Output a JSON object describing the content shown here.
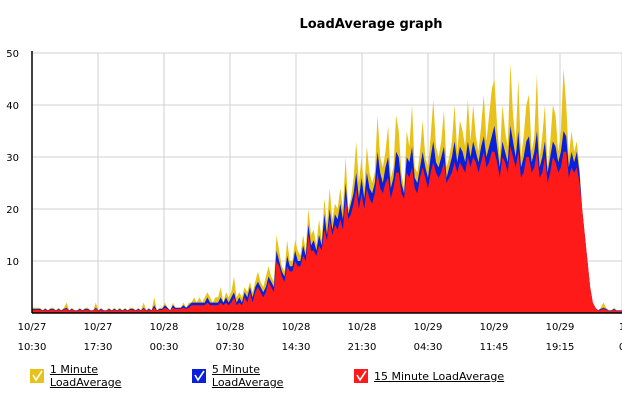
{
  "chart_data": {
    "type": "area",
    "title": "LoadAverage graph",
    "ylim": [
      0,
      50
    ],
    "yticks": [
      10,
      20,
      30,
      40,
      50
    ],
    "xtick_labels": [
      [
        "10/27",
        "10:30"
      ],
      [
        "10/27",
        "17:30"
      ],
      [
        "10/28",
        "00:30"
      ],
      [
        "10/28",
        "07:30"
      ],
      [
        "10/28",
        "14:30"
      ],
      [
        "10/28",
        "21:30"
      ],
      [
        "10/29",
        "04:30"
      ],
      [
        "10/29",
        "11:45"
      ],
      [
        "10/29",
        "19:15"
      ],
      [
        "1",
        "0"
      ]
    ],
    "grid": true,
    "legend_placement": "bottom",
    "series": [
      {
        "name": "1 Minute LoadAverage",
        "color": "#e8c21a",
        "values": [
          1,
          1,
          1,
          1,
          0.5,
          1,
          0.5,
          1,
          1,
          0.5,
          1,
          0.5,
          1,
          2,
          0.5,
          1,
          0.5,
          0.5,
          1,
          0.5,
          1,
          1,
          0.5,
          0.5,
          2,
          0.5,
          1,
          0.5,
          0.5,
          1,
          0.5,
          1,
          0.5,
          1,
          0.5,
          1,
          0.5,
          1,
          1,
          0.5,
          1,
          0.5,
          2,
          0.5,
          1,
          0.5,
          3,
          0.5,
          1,
          1,
          2,
          1,
          0.5,
          2,
          1,
          1,
          1,
          2,
          1,
          2,
          2,
          3,
          2,
          3,
          2,
          3,
          4,
          3,
          2,
          3,
          3,
          5,
          2,
          4,
          3,
          4,
          7,
          3,
          4,
          3,
          5,
          4,
          6,
          4,
          6,
          8,
          6,
          5,
          7,
          9,
          7,
          6,
          15,
          12,
          9,
          8,
          14,
          10,
          10,
          14,
          12,
          11,
          15,
          12,
          20,
          15,
          16,
          13,
          18,
          14,
          22,
          17,
          24,
          18,
          21,
          20,
          24,
          20,
          30,
          20,
          22,
          26,
          33,
          25,
          30,
          24,
          32,
          27,
          25,
          27,
          38,
          30,
          28,
          31,
          36,
          26,
          28,
          38,
          35,
          27,
          24,
          35,
          32,
          40,
          28,
          27,
          31,
          37,
          30,
          28,
          34,
          41,
          32,
          30,
          33,
          39,
          28,
          30,
          33,
          40,
          31,
          37,
          35,
          32,
          41,
          33,
          40,
          34,
          31,
          36,
          42,
          33,
          38,
          43,
          45,
          36,
          30,
          40,
          35,
          32,
          48,
          38,
          33,
          45,
          30,
          34,
          40,
          42,
          31,
          34,
          46,
          30,
          34,
          40,
          28,
          33,
          40,
          38,
          31,
          35,
          47,
          40,
          30,
          35,
          31,
          33,
          28,
          20,
          15,
          10,
          5,
          2,
          1,
          0.5,
          1,
          2,
          1,
          0.5,
          0.5,
          1,
          0.5,
          0.5,
          0.5
        ]
      },
      {
        "name": "5 Minute LoadAverage",
        "color": "#0a1fd9",
        "values": [
          0.8,
          0.8,
          0.8,
          0.8,
          0.5,
          0.8,
          0.5,
          0.8,
          0.8,
          0.5,
          0.8,
          0.5,
          0.8,
          1,
          0.5,
          0.8,
          0.5,
          0.5,
          0.8,
          0.5,
          0.8,
          0.8,
          0.5,
          0.5,
          1,
          0.5,
          0.8,
          0.5,
          0.5,
          0.8,
          0.5,
          0.8,
          0.5,
          0.8,
          0.5,
          0.8,
          0.5,
          0.8,
          0.8,
          0.5,
          0.8,
          0.5,
          1,
          0.5,
          0.8,
          0.5,
          1.5,
          0.5,
          0.8,
          0.8,
          1.5,
          1,
          0.5,
          1.5,
          1,
          1,
          1,
          1.5,
          1,
          1.5,
          2,
          2,
          2,
          2,
          2,
          2,
          3,
          2,
          2,
          2,
          2,
          3,
          2,
          3,
          2,
          3,
          4,
          2,
          3,
          2,
          4,
          3,
          5,
          3,
          5,
          6,
          5,
          4,
          5,
          7,
          6,
          5,
          12,
          10,
          8,
          7,
          11,
          9,
          9,
          12,
          10,
          10,
          13,
          11,
          17,
          13,
          14,
          12,
          15,
          13,
          19,
          15,
          20,
          16,
          19,
          18,
          21,
          18,
          25,
          19,
          21,
          23,
          27,
          22,
          26,
          22,
          27,
          24,
          23,
          25,
          31,
          27,
          25,
          28,
          30,
          24,
          26,
          31,
          30,
          25,
          23,
          30,
          29,
          32,
          26,
          25,
          28,
          31,
          28,
          26,
          30,
          33,
          29,
          28,
          30,
          32,
          26,
          28,
          30,
          33,
          29,
          32,
          31,
          29,
          33,
          30,
          33,
          31,
          29,
          32,
          34,
          30,
          32,
          34,
          36,
          32,
          28,
          33,
          31,
          29,
          36,
          33,
          30,
          35,
          28,
          30,
          33,
          34,
          29,
          31,
          35,
          28,
          30,
          33,
          27,
          30,
          33,
          32,
          29,
          31,
          35,
          34,
          28,
          31,
          29,
          31,
          27,
          20,
          15,
          10,
          5,
          2,
          1,
          0.5,
          0.8,
          1,
          0.8,
          0.5,
          0.5,
          0.8,
          0.5,
          0.5,
          0.5
        ]
      },
      {
        "name": "15 Minute LoadAverage",
        "color": "#ff1a1a",
        "values": [
          0.6,
          0.6,
          0.6,
          0.6,
          0.4,
          0.6,
          0.4,
          0.6,
          0.6,
          0.4,
          0.6,
          0.4,
          0.6,
          0.8,
          0.4,
          0.6,
          0.4,
          0.4,
          0.6,
          0.4,
          0.6,
          0.6,
          0.4,
          0.4,
          0.8,
          0.4,
          0.6,
          0.4,
          0.4,
          0.6,
          0.4,
          0.6,
          0.4,
          0.6,
          0.4,
          0.6,
          0.4,
          0.6,
          0.6,
          0.4,
          0.6,
          0.4,
          0.8,
          0.4,
          0.6,
          0.4,
          1,
          0.4,
          0.6,
          0.6,
          1,
          0.8,
          0.4,
          1,
          0.8,
          0.8,
          0.8,
          1,
          0.8,
          1,
          1.5,
          1.5,
          1.5,
          1.5,
          1.5,
          1.5,
          2,
          1.5,
          1.5,
          1.5,
          1.5,
          2,
          1.5,
          2,
          1.5,
          2,
          3,
          1.5,
          2,
          1.5,
          3,
          2,
          4,
          2,
          4,
          5,
          4,
          3,
          4,
          6,
          5,
          4,
          10,
          9,
          7,
          6,
          9,
          8,
          8,
          10,
          9,
          9,
          11,
          10,
          15,
          12,
          12,
          11,
          13,
          12,
          16,
          14,
          18,
          15,
          17,
          16,
          18,
          16,
          22,
          18,
          19,
          21,
          24,
          20,
          23,
          20,
          24,
          22,
          21,
          23,
          27,
          24,
          23,
          25,
          26,
          22,
          24,
          27,
          27,
          23,
          22,
          27,
          26,
          28,
          24,
          23,
          26,
          28,
          26,
          24,
          27,
          29,
          27,
          26,
          27,
          29,
          25,
          26,
          27,
          29,
          27,
          29,
          28,
          27,
          30,
          28,
          30,
          29,
          27,
          29,
          31,
          28,
          29,
          31,
          31,
          29,
          26,
          30,
          29,
          27,
          32,
          30,
          28,
          31,
          26,
          27,
          30,
          30,
          27,
          28,
          31,
          26,
          27,
          30,
          25,
          27,
          30,
          29,
          27,
          28,
          31,
          31,
          26,
          28,
          27,
          28,
          25,
          20,
          15,
          10,
          5,
          2,
          1,
          0.4,
          0.6,
          0.8,
          0.6,
          0.4,
          0.4,
          0.6,
          0.4,
          0.4,
          0.4
        ]
      }
    ]
  }
}
